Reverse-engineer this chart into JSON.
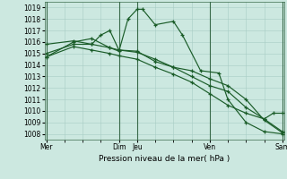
{
  "background_color": "#cce8e0",
  "grid_color": "#a8ccc4",
  "line_color": "#1a5c28",
  "title": "Pression niveau de la mer( hPa )",
  "ylim": [
    1007.5,
    1019.5
  ],
  "yticks": [
    1008,
    1009,
    1010,
    1011,
    1012,
    1013,
    1014,
    1015,
    1016,
    1017,
    1018,
    1019
  ],
  "xlim": [
    -0.1,
    13.1
  ],
  "xtick_pos": [
    0,
    4,
    5,
    9,
    13
  ],
  "xtick_lab": [
    "Mer",
    "Dim",
    "Jeu",
    "Ven",
    "Sam"
  ],
  "vlines": [
    0,
    4,
    5,
    9,
    13
  ],
  "series": [
    {
      "x": [
        0,
        1.5,
        2.5,
        3.5,
        4,
        4.5,
        5,
        5.3,
        6,
        7,
        7.5,
        8.5,
        9.5,
        10,
        11,
        12,
        13
      ],
      "y": [
        1014.7,
        1016.0,
        1016.3,
        1015.5,
        1015.2,
        1018.0,
        1018.85,
        1018.85,
        1017.5,
        1017.8,
        1016.6,
        1013.5,
        1013.3,
        1011.0,
        1009.0,
        1008.2,
        1008.0
      ]
    },
    {
      "x": [
        0,
        1.5,
        2.5,
        3.0,
        3.5,
        4,
        5,
        6,
        7,
        8,
        9,
        10,
        11,
        12,
        13
      ],
      "y": [
        1015.0,
        1015.8,
        1015.8,
        1016.6,
        1017.0,
        1015.3,
        1015.2,
        1014.3,
        1013.8,
        1013.5,
        1012.8,
        1012.2,
        1011.0,
        1009.2,
        1008.1
      ]
    },
    {
      "x": [
        0,
        1.5,
        2.5,
        3.5,
        4,
        5,
        6,
        7,
        8,
        9,
        10,
        11,
        12,
        13
      ],
      "y": [
        1015.8,
        1016.1,
        1015.8,
        1015.5,
        1015.3,
        1015.1,
        1014.5,
        1013.8,
        1013.0,
        1012.2,
        1011.7,
        1010.3,
        1009.3,
        1008.2
      ]
    },
    {
      "x": [
        0,
        1.5,
        2.5,
        3.5,
        4,
        5,
        6,
        7,
        8,
        9,
        10,
        11,
        12,
        12.5,
        13
      ],
      "y": [
        1014.7,
        1015.6,
        1015.3,
        1015.0,
        1014.8,
        1014.5,
        1013.8,
        1013.2,
        1012.5,
        1011.5,
        1010.5,
        1009.8,
        1009.3,
        1009.8,
        1009.8
      ]
    }
  ]
}
